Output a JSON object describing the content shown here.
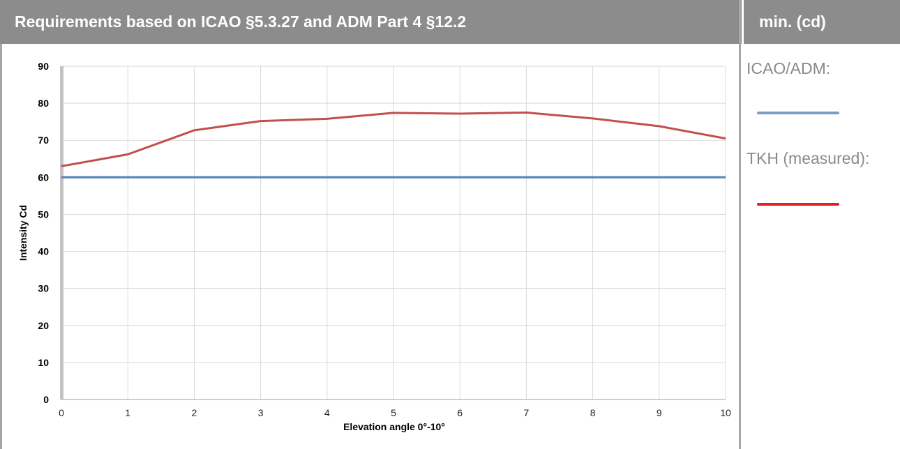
{
  "header": {
    "title": "Requirements based on ICAO §5.3.27 and ADM Part 4 §12.2",
    "side_title": "min. (cd)"
  },
  "legend": {
    "items": [
      {
        "label": "ICAO/ADM:",
        "color": "#7b9bc2"
      },
      {
        "label": "TKH (measured):",
        "color": "#e31e24"
      }
    ]
  },
  "chart_data": {
    "type": "line",
    "xlabel": "Elevation angle 0°-10°",
    "ylabel": "Intensity Cd",
    "x": [
      0,
      1,
      2,
      3,
      4,
      5,
      6,
      7,
      8,
      9,
      10
    ],
    "xlim": [
      0,
      10
    ],
    "ylim": [
      0,
      90
    ],
    "yticks": [
      0,
      10,
      20,
      30,
      40,
      50,
      60,
      70,
      80,
      90
    ],
    "grid": true,
    "series": [
      {
        "values": [
          60,
          60,
          60,
          60,
          60,
          60,
          60,
          60,
          60,
          60,
          60
        ],
        "color": "#4f81bd"
      },
      {
        "values": [
          63,
          66.2,
          72.7,
          75.2,
          75.8,
          77.4,
          77.2,
          77.5,
          75.9,
          73.8,
          70.5
        ],
        "color": "#c0504d"
      }
    ]
  }
}
